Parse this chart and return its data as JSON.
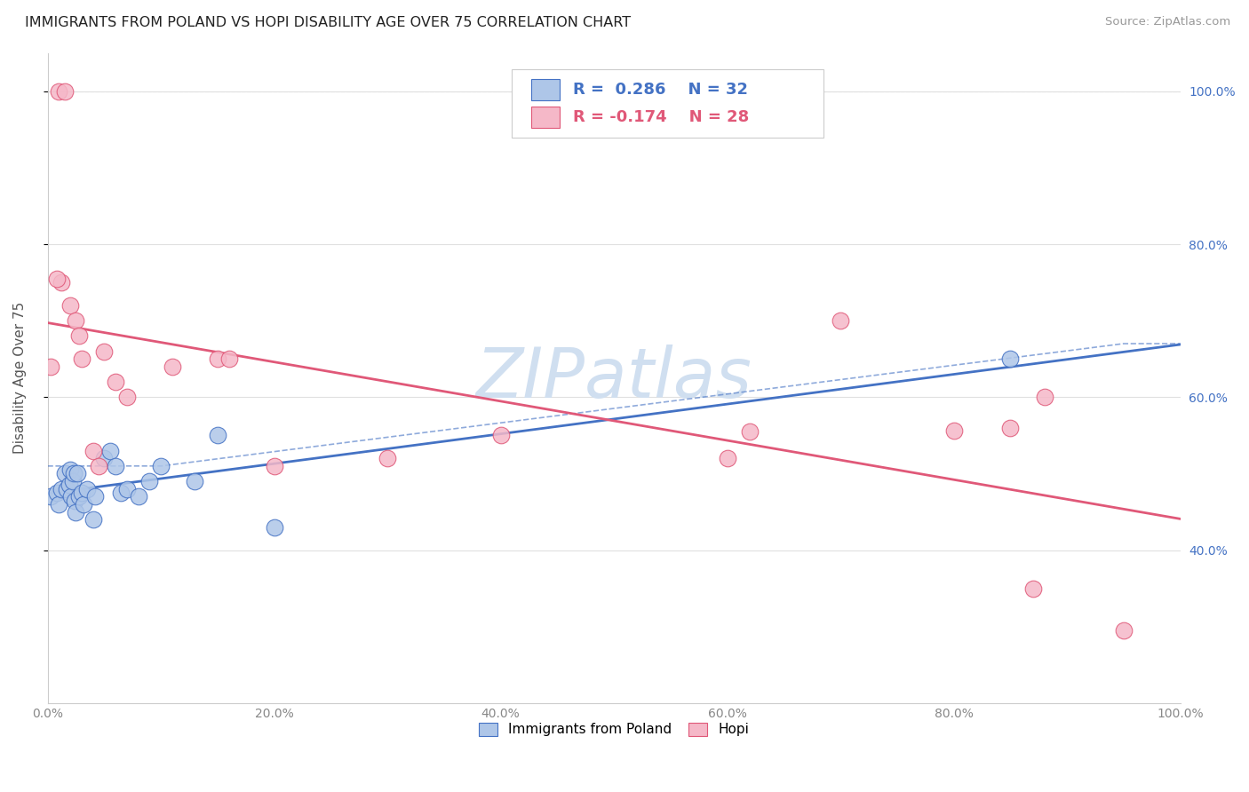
{
  "title": "IMMIGRANTS FROM POLAND VS HOPI DISABILITY AGE OVER 75 CORRELATION CHART",
  "source": "Source: ZipAtlas.com",
  "ylabel": "Disability Age Over 75",
  "legend_label1": "Immigrants from Poland",
  "legend_label2": "Hopi",
  "poland_x": [
    0.3,
    0.8,
    1.0,
    1.2,
    1.5,
    1.7,
    1.9,
    2.0,
    2.1,
    2.2,
    2.3,
    2.4,
    2.5,
    2.6,
    2.8,
    3.0,
    3.2,
    3.5,
    4.0,
    4.2,
    5.0,
    5.5,
    6.0,
    6.5,
    7.0,
    8.0,
    9.0,
    10.0,
    13.0,
    15.0,
    20.0,
    85.0
  ],
  "poland_y": [
    0.47,
    0.475,
    0.46,
    0.48,
    0.5,
    0.48,
    0.485,
    0.505,
    0.47,
    0.49,
    0.5,
    0.465,
    0.45,
    0.5,
    0.47,
    0.475,
    0.46,
    0.48,
    0.44,
    0.47,
    0.52,
    0.53,
    0.51,
    0.475,
    0.48,
    0.47,
    0.49,
    0.51,
    0.49,
    0.55,
    0.43,
    0.65
  ],
  "hopi_x": [
    0.3,
    1.0,
    1.5,
    2.0,
    2.5,
    3.0,
    4.0,
    4.5,
    6.0,
    7.0,
    11.0,
    15.0,
    20.0,
    30.0,
    40.0,
    60.0,
    70.0,
    80.0,
    85.0,
    87.0,
    88.0,
    95.0,
    16.0,
    62.0,
    5.0,
    2.8,
    1.2,
    0.8
  ],
  "hopi_y": [
    0.64,
    1.0,
    1.0,
    0.72,
    0.7,
    0.65,
    0.53,
    0.51,
    0.62,
    0.6,
    0.64,
    0.65,
    0.51,
    0.52,
    0.55,
    0.52,
    0.7,
    0.556,
    0.56,
    0.35,
    0.6,
    0.295,
    0.65,
    0.555,
    0.66,
    0.68,
    0.75,
    0.755
  ],
  "poland_color": "#aec6e8",
  "hopi_color": "#f5b8c8",
  "poland_line_color": "#4472c4",
  "hopi_line_color": "#e05878",
  "background_color": "#ffffff",
  "grid_color": "#e0e0e0",
  "watermark_color": "#d0dff0",
  "ylim_min": 0.2,
  "ylim_max": 1.05,
  "xlim_min": 0.0,
  "xlim_max": 100.0,
  "yticks": [
    0.4,
    0.6,
    0.8,
    1.0
  ],
  "ytick_labels": [
    "40.0%",
    "60.0%",
    "80.0%",
    "100.0%"
  ],
  "xticks": [
    0,
    20,
    40,
    60,
    80,
    100
  ],
  "xtick_labels": [
    "0.0%",
    "20.0%",
    "40.0%",
    "60.0%",
    "80.0%",
    "100.0%"
  ]
}
